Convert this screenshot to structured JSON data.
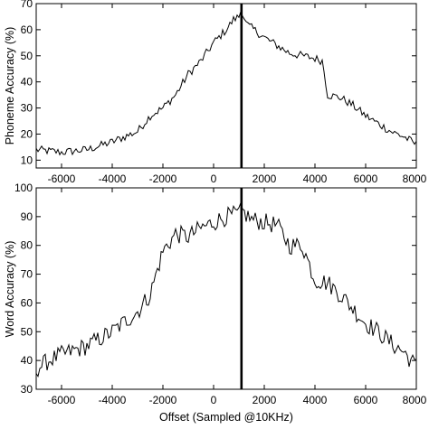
{
  "chart_data": [
    {
      "type": "line",
      "title": "",
      "xlabel": "",
      "ylabel": "Phoneme Accuracy (%)",
      "xlim": [
        -7000,
        8000
      ],
      "ylim": [
        7,
        70
      ],
      "xticks": [
        -6000,
        -4000,
        -2000,
        0,
        2000,
        4000,
        6000,
        8000
      ],
      "yticks": [
        10,
        20,
        30,
        40,
        50,
        60,
        70
      ],
      "grid": false,
      "legend": "none",
      "vline": 1100,
      "series": [
        {
          "x": [
            -7000,
            -6000,
            -5000,
            -4000,
            -3000,
            -2500,
            -2000,
            -1500,
            -1000,
            -500,
            0,
            500,
            800,
            1000,
            1100,
            1300,
            1600,
            2000,
            2500,
            3000,
            3500,
            4000,
            4300,
            4500,
            5000,
            5500,
            6000,
            6500,
            7000,
            7500,
            8000
          ],
          "y": [
            14,
            13,
            14,
            17,
            21,
            27,
            30,
            35,
            43,
            48,
            55,
            60,
            64,
            65,
            68,
            62,
            60,
            57,
            54,
            51,
            50,
            49,
            48,
            35,
            34,
            31,
            27,
            24,
            21,
            19,
            16
          ]
        }
      ]
    },
    {
      "type": "line",
      "title": "",
      "xlabel": "Offset (Sampled @10KHz)",
      "ylabel": "Word Accuracy (%)",
      "xlim": [
        -7000,
        8000
      ],
      "ylim": [
        30,
        100
      ],
      "xticks": [
        -6000,
        -4000,
        -2000,
        0,
        2000,
        4000,
        6000,
        8000
      ],
      "yticks": [
        30,
        40,
        50,
        60,
        70,
        80,
        90,
        100
      ],
      "grid": false,
      "legend": "none",
      "vline": 1100,
      "series": [
        {
          "x": [
            -7000,
            -6500,
            -6000,
            -5000,
            -4000,
            -3000,
            -2500,
            -2000,
            -1500,
            -1000,
            -500,
            0,
            500,
            1000,
            1100,
            1500,
            2000,
            2500,
            3000,
            3500,
            4000,
            4500,
            5000,
            5500,
            6000,
            6500,
            7000,
            7500,
            8000
          ],
          "y": [
            37,
            40,
            42,
            45,
            50,
            57,
            63,
            78,
            84,
            83,
            86,
            88,
            90,
            91,
            92,
            89,
            88,
            87,
            80,
            80,
            68,
            67,
            63,
            58,
            53,
            50,
            46,
            43,
            38
          ]
        }
      ]
    }
  ]
}
